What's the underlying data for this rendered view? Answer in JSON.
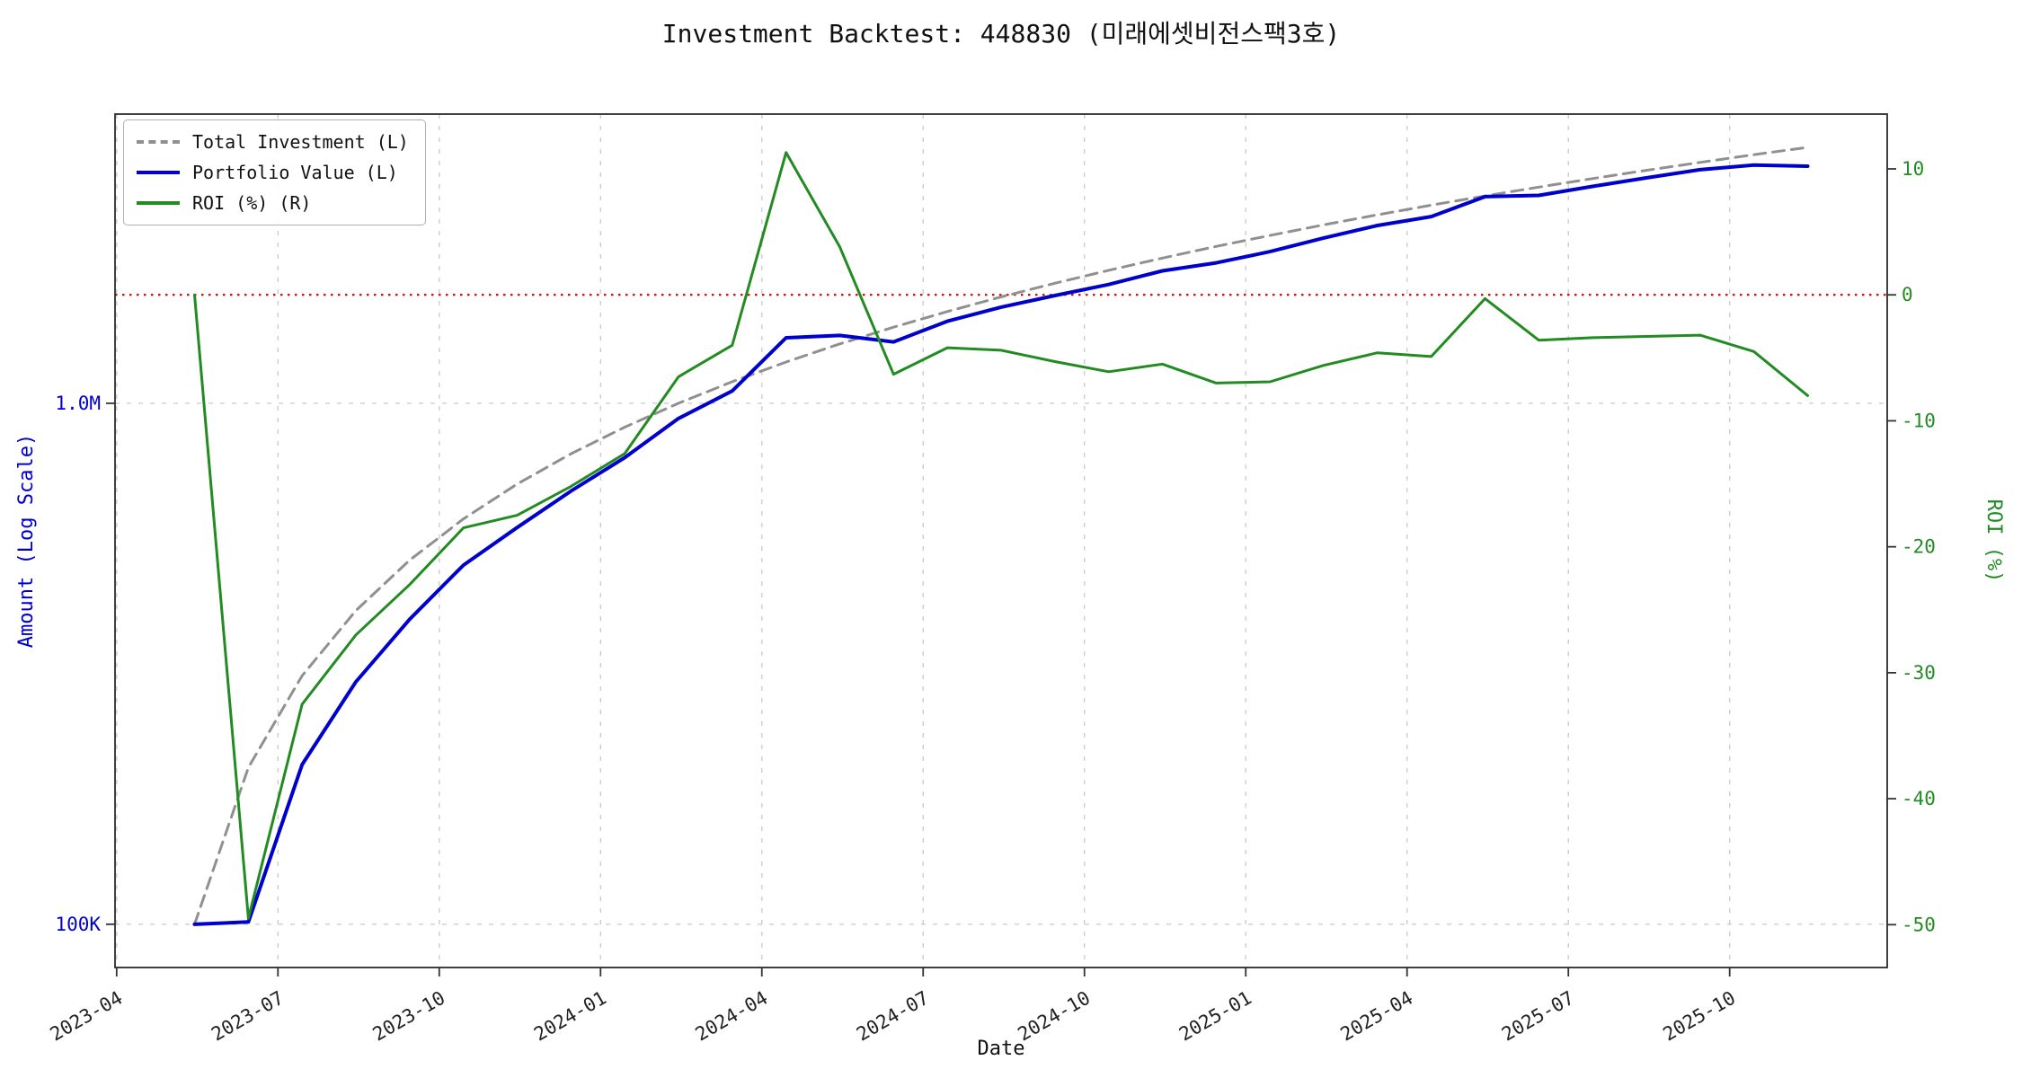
{
  "chart_data": {
    "type": "line",
    "title": "Investment Backtest: 448830 (미래에셋비전스팩3호)",
    "xlabel": "Date",
    "legend_position": "upper-left",
    "grid": true,
    "x": [
      "2023-05",
      "2023-06",
      "2023-07",
      "2023-08",
      "2023-09",
      "2023-10",
      "2023-11",
      "2023-12",
      "2024-01",
      "2024-02",
      "2024-03",
      "2024-04",
      "2024-05",
      "2024-06",
      "2024-07",
      "2024-08",
      "2024-09",
      "2024-10",
      "2024-11",
      "2024-12",
      "2025-01",
      "2025-02",
      "2025-03",
      "2025-04",
      "2025-05",
      "2025-06",
      "2025-07",
      "2025-08",
      "2025-09",
      "2025-10",
      "2025-11"
    ],
    "x_ticks": [
      "2023-04",
      "2023-07",
      "2023-10",
      "2024-01",
      "2024-04",
      "2024-07",
      "2024-10",
      "2025-01",
      "2025-04",
      "2025-07",
      "2025-10"
    ],
    "x_range_months": [
      2.97,
      35.93
    ],
    "point_offset_months": 0.45,
    "left_axis": {
      "label": "Amount (Log Scale)",
      "scale": "log",
      "color": "#0000cd",
      "ticks": [
        {
          "label": "1.0M",
          "value": 1000000
        },
        {
          "label": "100K",
          "value": 100000
        }
      ],
      "range": [
        82600,
        3590000
      ]
    },
    "right_axis": {
      "label": "ROI (%)",
      "scale": "linear",
      "color": "#228b22",
      "ticks": [
        10,
        0,
        -10,
        -20,
        -30,
        -40,
        -50
      ],
      "range": [
        -53.4,
        14.35
      ]
    },
    "zero_line": {
      "axis": "right",
      "value": 0,
      "color": "#cc0000",
      "style": "dotted"
    },
    "series": [
      {
        "name": "Total Investment (L)",
        "axis": "left",
        "color": "#909090",
        "style": "dashed",
        "values": [
          100000,
          200000,
          300000,
          400000,
          500000,
          600000,
          700000,
          800000,
          900000,
          1000000,
          1100000,
          1200000,
          1300000,
          1400000,
          1500000,
          1600000,
          1700000,
          1800000,
          1900000,
          2000000,
          2100000,
          2200000,
          2300000,
          2400000,
          2500000,
          2600000,
          2700000,
          2800000,
          2900000,
          3000000,
          3100000
        ]
      },
      {
        "name": "Portfolio Value (L)",
        "axis": "left",
        "color": "#0000cd",
        "style": "solid",
        "values": [
          100000,
          101000,
          202500,
          292000,
          385000,
          489000,
          577500,
          678400,
          786600,
          935000,
          1056000,
          1335600,
          1349400,
          1311800,
          1437000,
          1529600,
          1609900,
          1690200,
          1795500,
          1860000,
          1955100,
          2076800,
          2194200,
          2282400,
          2492500,
          2506400,
          2608200,
          2707600,
          2807200,
          2865000,
          2852000
        ]
      },
      {
        "name": "ROI (%) (R)",
        "axis": "right",
        "color": "#228b22",
        "style": "solid",
        "values": [
          0.0,
          -49.5,
          -32.5,
          -27.0,
          -23.0,
          -18.5,
          -17.5,
          -15.2,
          -12.6,
          -6.5,
          -4.0,
          11.3,
          3.8,
          -6.3,
          -4.2,
          -4.4,
          -5.3,
          -6.1,
          -5.5,
          -7.0,
          -6.9,
          -5.6,
          -4.6,
          -4.9,
          -0.3,
          -3.6,
          -3.4,
          -3.3,
          -3.2,
          -4.5,
          -8.0
        ]
      }
    ]
  }
}
